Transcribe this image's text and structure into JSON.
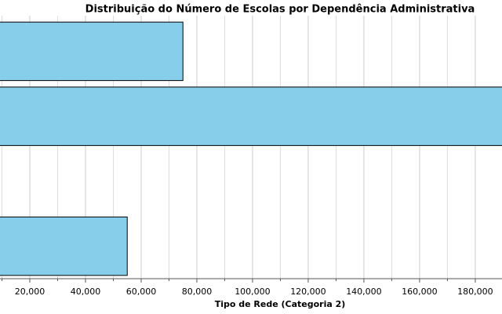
{
  "chart_data": {
    "type": "barh",
    "title": "Distribuição do Número de Escolas por Dependência Administrativa",
    "xlabel": "Tipo de Rede (Categoria 2)",
    "categories": [
      null,
      null,
      null,
      null
    ],
    "values": [
      75000,
      190000,
      null,
      55000
    ],
    "color": "#87ceeb",
    "edgecolor": "#000000",
    "xlim": [
      9300,
      189600
    ],
    "xticks": [
      {
        "value": 20000,
        "label": "20,000"
      },
      {
        "value": 40000,
        "label": "40,000"
      },
      {
        "value": 60000,
        "label": "60,000"
      },
      {
        "value": 80000,
        "label": "80,000"
      },
      {
        "value": 100000,
        "label": "100,000"
      },
      {
        "value": 120000,
        "label": "120,000"
      },
      {
        "value": 140000,
        "label": "140,000"
      },
      {
        "value": 160000,
        "label": "160,000"
      },
      {
        "value": 180000,
        "label": "180,000"
      }
    ],
    "minor_xticks": [
      10000,
      30000,
      50000,
      70000,
      90000,
      110000,
      130000,
      150000,
      170000
    ],
    "grid": true
  }
}
